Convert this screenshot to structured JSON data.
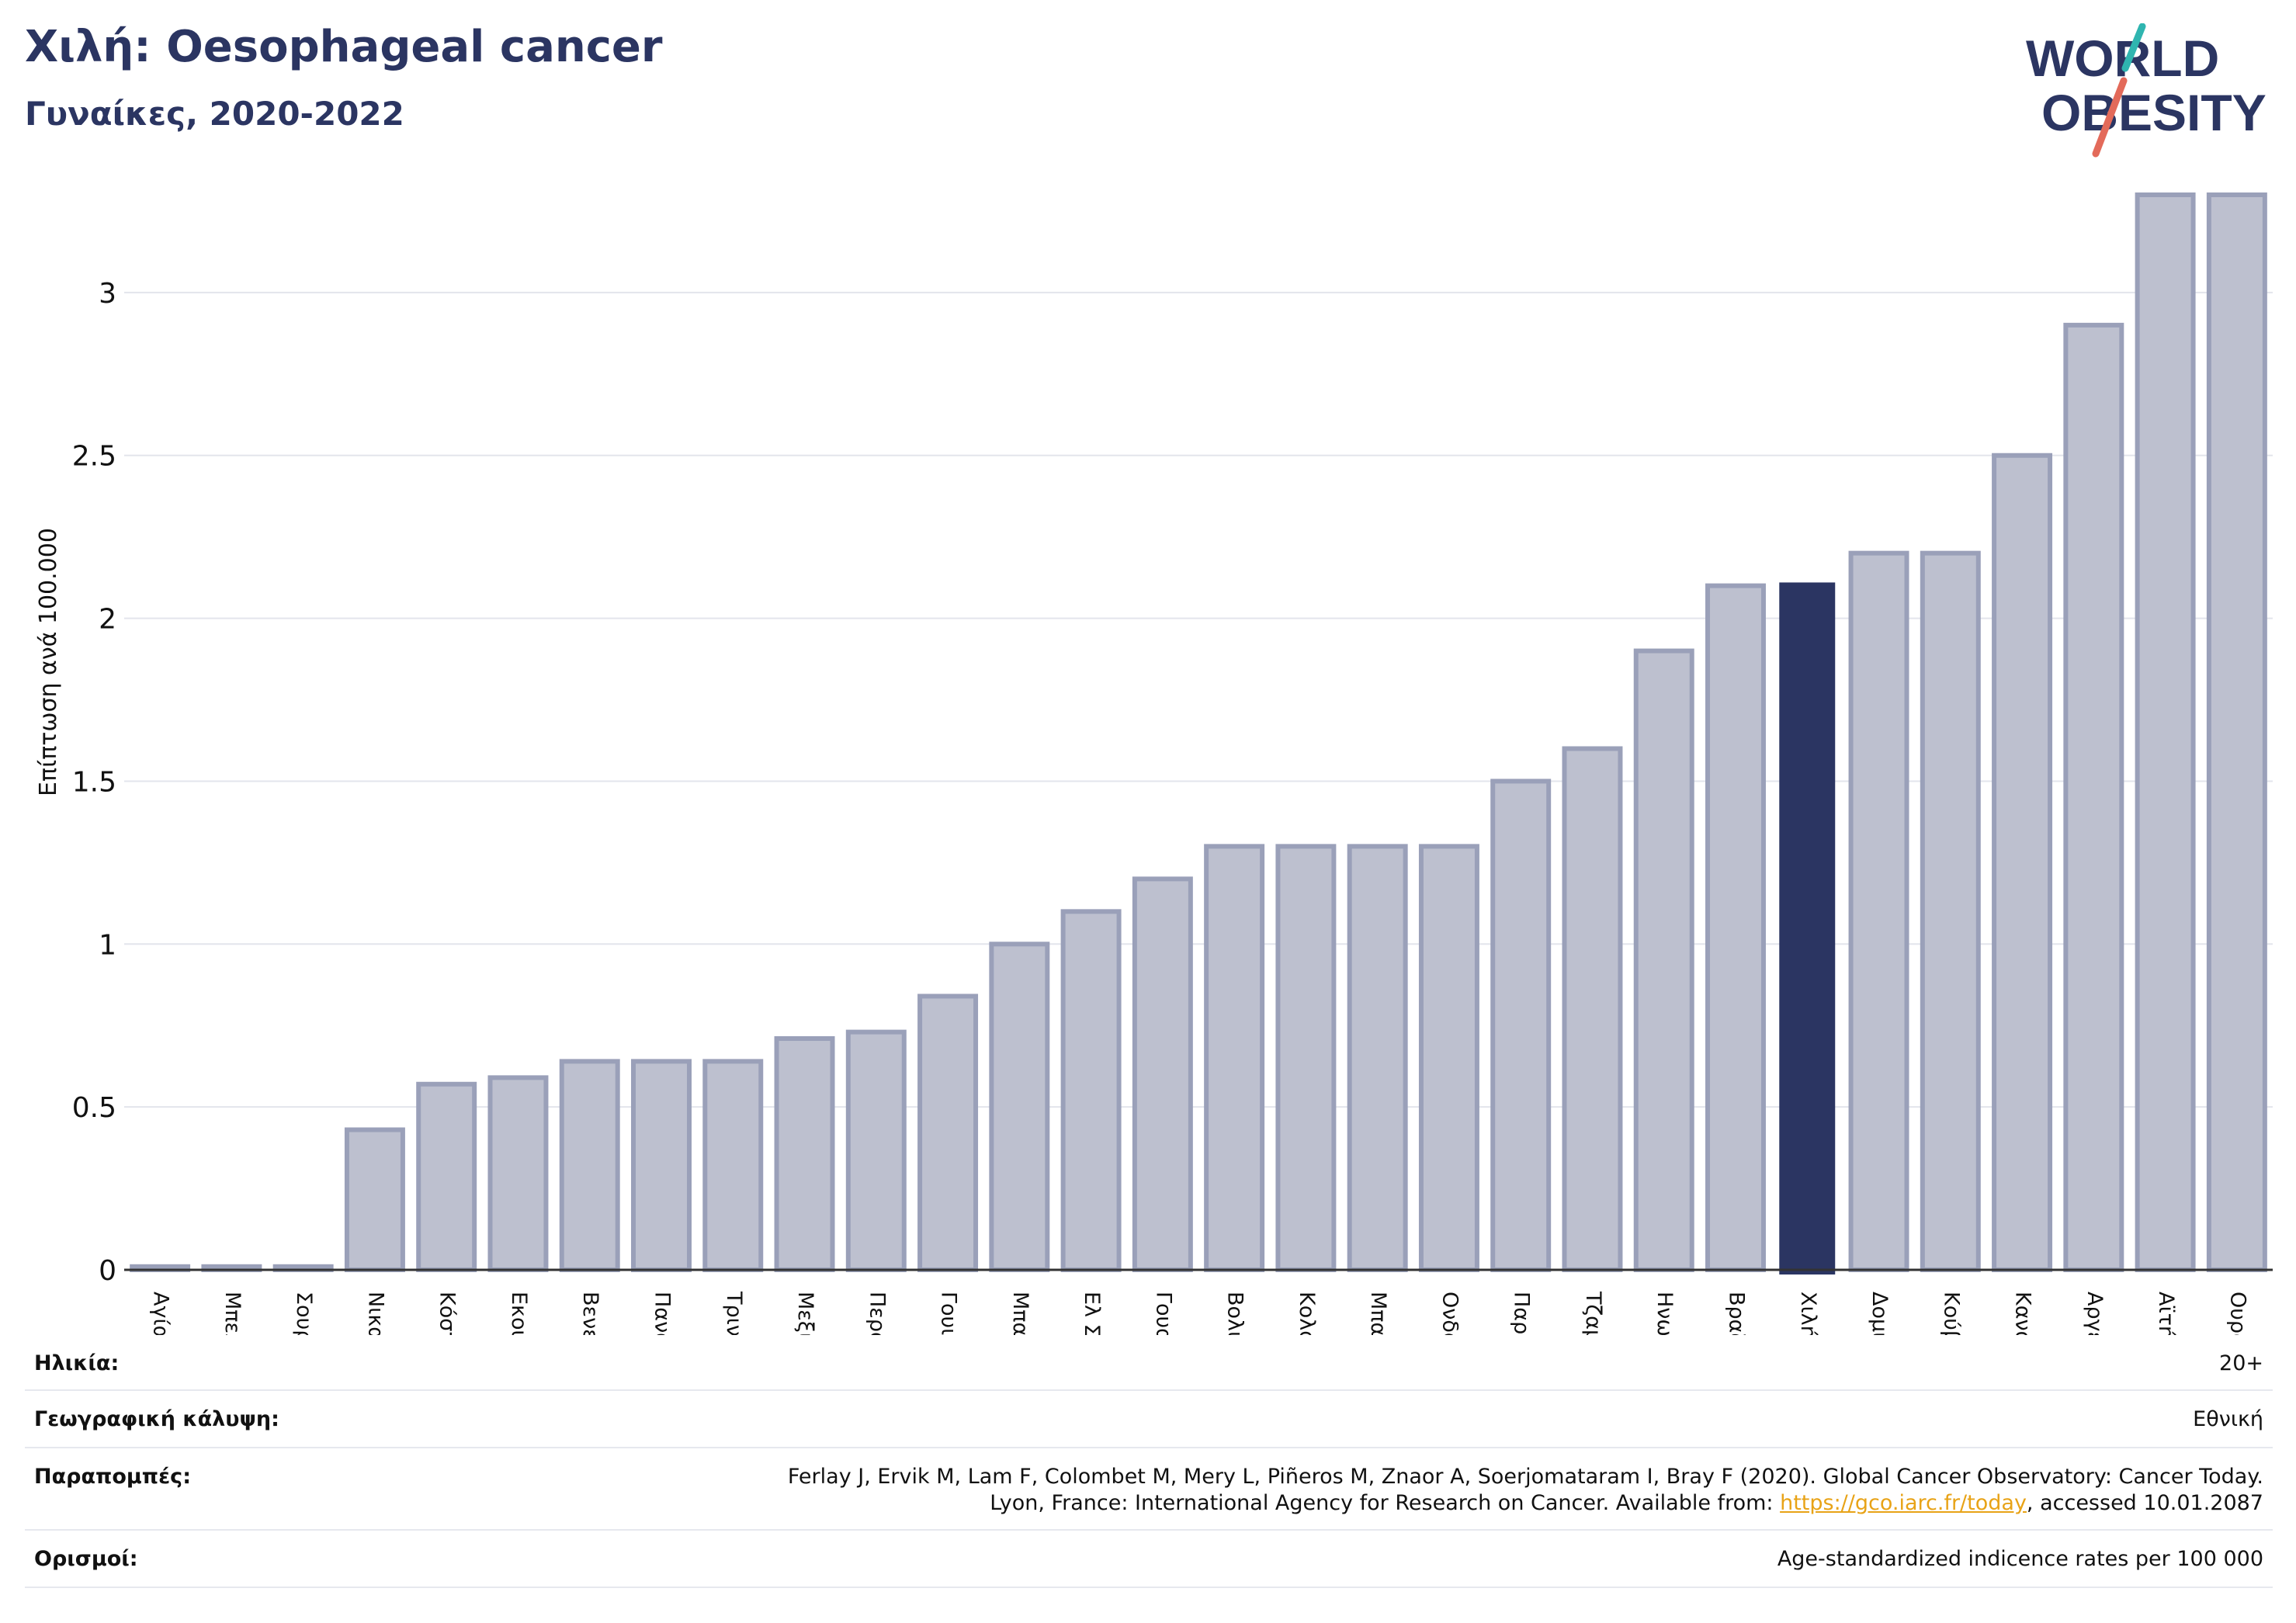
{
  "header": {
    "title": "Χιλή: Oesophageal cancer",
    "subtitle": "Γυναίκες, 2020-2022"
  },
  "logo": {
    "line1": "WORLD",
    "line2": "OBESITY",
    "icon": "world-obesity-slash-logo"
  },
  "colors": {
    "bar": "#bdc0cf",
    "bar_border": "#9aa0b9",
    "highlight": "#2b3562",
    "grid": "#e3e5ec"
  },
  "chart_data": {
    "type": "bar",
    "ylabel": "Επίπτωση ανά 100.000",
    "ylim": [
      0,
      3.35
    ],
    "yticks": [
      0,
      0.5,
      1,
      1.5,
      2,
      2.5,
      3
    ],
    "grid": true,
    "highlight": "Χιλή",
    "categories": [
      "Αγία Λουκία",
      "Μπελίζ",
      "Σουρινάμ",
      "Νικαράγουα",
      "Κόστα Ρίκα",
      "Εκουαδόρ",
      "Βενεζουέλα",
      "Παναμάς",
      "Τρινιντάντ και Τομπάγκο",
      "Μεξικό",
      "Περού",
      "Γουιάνα",
      "Μπαρμπάντος",
      "Ελ Σαλβαδόρ",
      "Γουατεμάλα",
      "Βολιβία",
      "Κολομβία",
      "Μπαχάμες",
      "Ονδούρα",
      "Παραγουάη",
      "Τζαμάικα",
      "Ηνωμένες Πολιτείες",
      "Βραζιλία",
      "Χιλή",
      "Δομινικανή Δημοκρατία",
      "Κούβα",
      "Καναδάς",
      "Αργεντινή",
      "Αϊτή",
      "Ουρουγουάη"
    ],
    "values": [
      0.01,
      0.01,
      0.01,
      0.43,
      0.57,
      0.59,
      0.64,
      0.64,
      0.64,
      0.71,
      0.73,
      0.84,
      1.0,
      1.1,
      1.2,
      1.3,
      1.3,
      1.3,
      1.3,
      1.5,
      1.6,
      1.9,
      2.1,
      2.11,
      2.2,
      2.2,
      2.5,
      2.9,
      3.3,
      3.3
    ]
  },
  "footer": {
    "age_label": "Ηλικία:",
    "age_value": "20+",
    "coverage_label": "Γεωγραφική κάλυψη:",
    "coverage_value": "Εθνική",
    "refs_label": "Παραπομπές:",
    "refs_line1": "Ferlay J, Ervik M, Lam F, Colombet M, Mery L, Piñeros M, Znaor A, Soerjomataram I, Bray F (2020). Global Cancer Observatory: Cancer Today.",
    "refs_line2_prefix": "Lyon, France: International Agency for Research on Cancer. Available from: ",
    "refs_link": "https://gco.iarc.fr/today",
    "refs_line2_suffix": ", accessed 10.01.2087",
    "defs_label": "Ορισμοί:",
    "defs_value": "Age-standardized indicence rates per 100 000"
  }
}
